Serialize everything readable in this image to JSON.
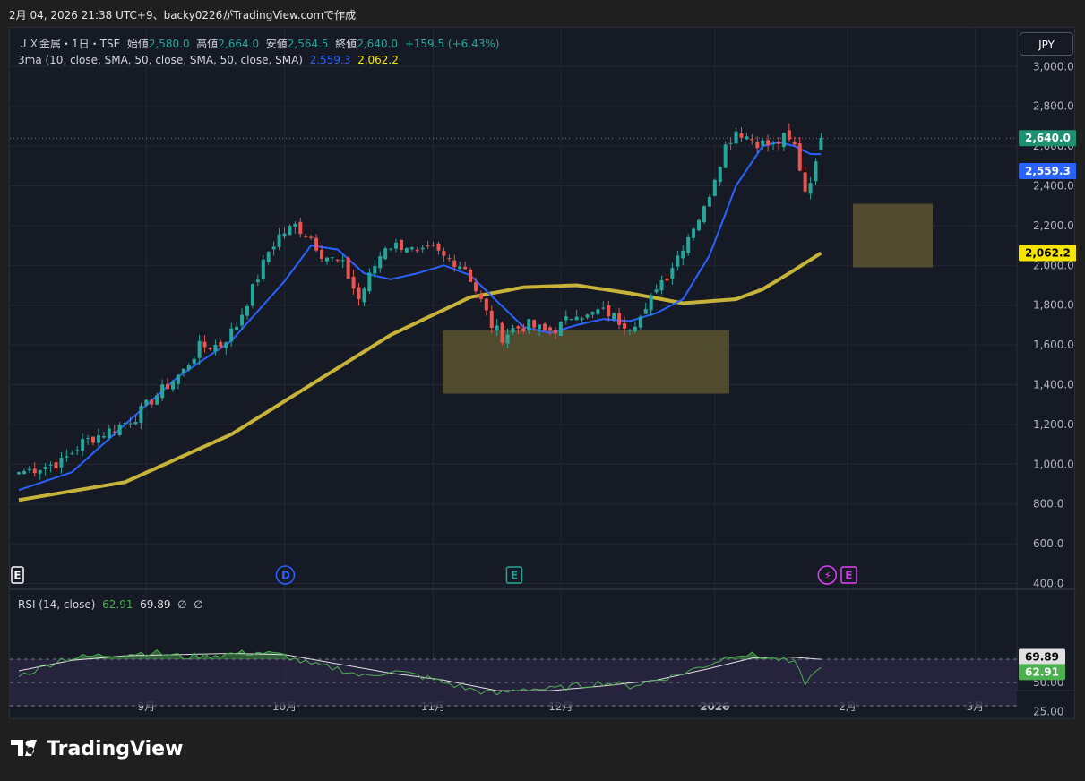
{
  "header": {
    "text": "2月 04, 2026 21:38 UTC+9、backy0226がTradingView.comで作成"
  },
  "legend": {
    "symbol": "ＪＸ金属・1日・TSE",
    "open_label": "始値",
    "open": "2,580.0",
    "high_label": "高値",
    "high": "2,664.0",
    "low_label": "安値",
    "low": "2,564.5",
    "close_label": "終値",
    "close": "2,640.0",
    "change": "+159.5 (+6.43%)",
    "ma_label": "3ma (10, close, SMA, 50, close, SMA, 50, close, SMA)",
    "ma10_value": "2,559.3",
    "ma50_value": "2,062.2"
  },
  "currency_button": "JPY",
  "rsi_legend": {
    "label": "RSI (14, close)",
    "rsi": "62.91",
    "rsi_ma": "69.89",
    "sym1": "∅",
    "sym2": "∅"
  },
  "logo": {
    "text": "TradingView"
  },
  "colors": {
    "up": "#26a69a",
    "down": "#ef5350",
    "ma10": "#2962ff",
    "ma50": "#c8b33a",
    "zone": "#5b5531",
    "rsi_line": "#4caf50",
    "rsi_ma": "#e0e0e0",
    "rsi_band": "#2a2642",
    "last_price_bg": "#1e8f6f",
    "ma10_bg": "#2962ff",
    "ma50_bg": "#f5e400"
  },
  "chart_data": {
    "type": "candlestick",
    "price_axis": {
      "ticks": [
        400,
        600,
        800,
        1000,
        1200,
        1400,
        1600,
        1800,
        2000,
        2200,
        2400,
        2600,
        2800,
        3000
      ],
      "tick_labels": [
        "400.0",
        "600.0",
        "800.0",
        "1,000.0",
        "1,200.0",
        "1,400.0",
        "1,600.0",
        "1,800.0",
        "2,000.0",
        "2,200.0",
        "2,400.0",
        "2,600.0",
        "2,800.0",
        "3,000.0"
      ],
      "range": [
        400,
        3000
      ]
    },
    "time_axis": {
      "labels": [
        "9月",
        "10月",
        "11月",
        "12月",
        "2026",
        "2月",
        "3月"
      ]
    },
    "price_labels": {
      "last": "2,640.0",
      "ma10": "2,559.3",
      "ma50": "2,062.2"
    },
    "last_price": 2640,
    "zones": [
      {
        "top": 1675,
        "bottom": 1355,
        "from_bar": 88,
        "to_bar": 142
      },
      {
        "top": 2310,
        "bottom": 1990,
        "from_bar": 157,
        "to_bar": 172
      }
    ],
    "event_markers": [
      {
        "bar": 0,
        "type": "E",
        "color": "#ffffff"
      },
      {
        "bar": 51,
        "type": "D",
        "color": "#2962ff"
      },
      {
        "bar": 94,
        "type": "E",
        "color": "#26a69a"
      },
      {
        "bar": 153,
        "type": "⚡",
        "color": "#e040fb"
      },
      {
        "bar": 157,
        "type": "E",
        "color": "#e040fb"
      }
    ],
    "anchors_close": [
      [
        0,
        960
      ],
      [
        8,
        1010
      ],
      [
        12,
        1110
      ],
      [
        18,
        1180
      ],
      [
        22,
        1240
      ],
      [
        26,
        1350
      ],
      [
        31,
        1470
      ],
      [
        34,
        1590
      ],
      [
        38,
        1600
      ],
      [
        41,
        1700
      ],
      [
        44,
        1880
      ],
      [
        47,
        2070
      ],
      [
        49,
        2150
      ],
      [
        52,
        2200
      ],
      [
        55,
        2140
      ],
      [
        57,
        2060
      ],
      [
        61,
        2000
      ],
      [
        64,
        1830
      ],
      [
        67,
        2000
      ],
      [
        69,
        2100
      ],
      [
        73,
        2100
      ],
      [
        75,
        2050
      ],
      [
        78,
        2080
      ],
      [
        80,
        2040
      ],
      [
        82,
        2020
      ],
      [
        84,
        1990
      ],
      [
        87,
        1820
      ],
      [
        89,
        1700
      ],
      [
        91,
        1640
      ],
      [
        93,
        1680
      ],
      [
        96,
        1700
      ],
      [
        99,
        1670
      ],
      [
        101,
        1680
      ],
      [
        103,
        1720
      ],
      [
        105,
        1770
      ],
      [
        107,
        1740
      ],
      [
        109,
        1770
      ],
      [
        111,
        1760
      ],
      [
        113,
        1720
      ],
      [
        115,
        1700
      ],
      [
        118,
        1760
      ],
      [
        120,
        1900
      ],
      [
        122,
        1950
      ],
      [
        124,
        2050
      ],
      [
        127,
        2200
      ],
      [
        129,
        2280
      ],
      [
        131,
        2450
      ],
      [
        133,
        2600
      ],
      [
        135,
        2680
      ],
      [
        137,
        2650
      ],
      [
        139,
        2620
      ],
      [
        142,
        2600
      ],
      [
        144,
        2640
      ],
      [
        146,
        2600
      ],
      [
        148,
        2380
      ],
      [
        150,
        2500
      ],
      [
        151,
        2640
      ]
    ],
    "ma10_anchors": [
      [
        0,
        870
      ],
      [
        10,
        960
      ],
      [
        20,
        1200
      ],
      [
        30,
        1440
      ],
      [
        40,
        1620
      ],
      [
        50,
        1920
      ],
      [
        55,
        2100
      ],
      [
        60,
        2080
      ],
      [
        65,
        1960
      ],
      [
        70,
        1930
      ],
      [
        75,
        1960
      ],
      [
        80,
        2000
      ],
      [
        85,
        1950
      ],
      [
        90,
        1820
      ],
      [
        95,
        1690
      ],
      [
        100,
        1660
      ],
      [
        105,
        1700
      ],
      [
        110,
        1730
      ],
      [
        115,
        1720
      ],
      [
        120,
        1760
      ],
      [
        125,
        1830
      ],
      [
        130,
        2050
      ],
      [
        135,
        2400
      ],
      [
        140,
        2600
      ],
      [
        143,
        2620
      ],
      [
        146,
        2600
      ],
      [
        149,
        2560
      ],
      [
        151,
        2559.3
      ]
    ],
    "ma50_anchors": [
      [
        0,
        820
      ],
      [
        20,
        910
      ],
      [
        40,
        1150
      ],
      [
        55,
        1400
      ],
      [
        70,
        1650
      ],
      [
        85,
        1840
      ],
      [
        95,
        1890
      ],
      [
        105,
        1900
      ],
      [
        115,
        1860
      ],
      [
        125,
        1810
      ],
      [
        135,
        1830
      ],
      [
        140,
        1880
      ],
      [
        145,
        1960
      ],
      [
        151,
        2062.2
      ]
    ],
    "rsi": {
      "range": [
        25,
        80
      ],
      "ticks": [
        25,
        50
      ],
      "tick_labels": [
        "25.00",
        "50.00"
      ],
      "band": [
        30,
        70
      ],
      "last_rsi": 62.91,
      "last_rsi_ma": 69.89,
      "rsi_anchors": [
        [
          0,
          55
        ],
        [
          8,
          70
        ],
        [
          15,
          73
        ],
        [
          25,
          76
        ],
        [
          31,
          72
        ],
        [
          38,
          74
        ],
        [
          45,
          76
        ],
        [
          50,
          73
        ],
        [
          55,
          65
        ],
        [
          60,
          62
        ],
        [
          65,
          55
        ],
        [
          70,
          60
        ],
        [
          75,
          56
        ],
        [
          80,
          50
        ],
        [
          85,
          44
        ],
        [
          90,
          40
        ],
        [
          95,
          45
        ],
        [
          100,
          44
        ],
        [
          105,
          47
        ],
        [
          110,
          50
        ],
        [
          115,
          47
        ],
        [
          120,
          52
        ],
        [
          125,
          58
        ],
        [
          130,
          66
        ],
        [
          135,
          75
        ],
        [
          140,
          72
        ],
        [
          143,
          70
        ],
        [
          146,
          66
        ],
        [
          148,
          50
        ],
        [
          151,
          62.91
        ]
      ],
      "ma_anchors": [
        [
          0,
          60
        ],
        [
          10,
          69
        ],
        [
          20,
          73
        ],
        [
          30,
          74
        ],
        [
          40,
          75
        ],
        [
          50,
          74
        ],
        [
          60,
          66
        ],
        [
          70,
          58
        ],
        [
          80,
          52
        ],
        [
          90,
          43
        ],
        [
          100,
          43
        ],
        [
          110,
          47
        ],
        [
          120,
          52
        ],
        [
          130,
          62
        ],
        [
          138,
          71
        ],
        [
          144,
          72
        ],
        [
          148,
          71
        ],
        [
          151,
          69.89
        ]
      ]
    }
  }
}
